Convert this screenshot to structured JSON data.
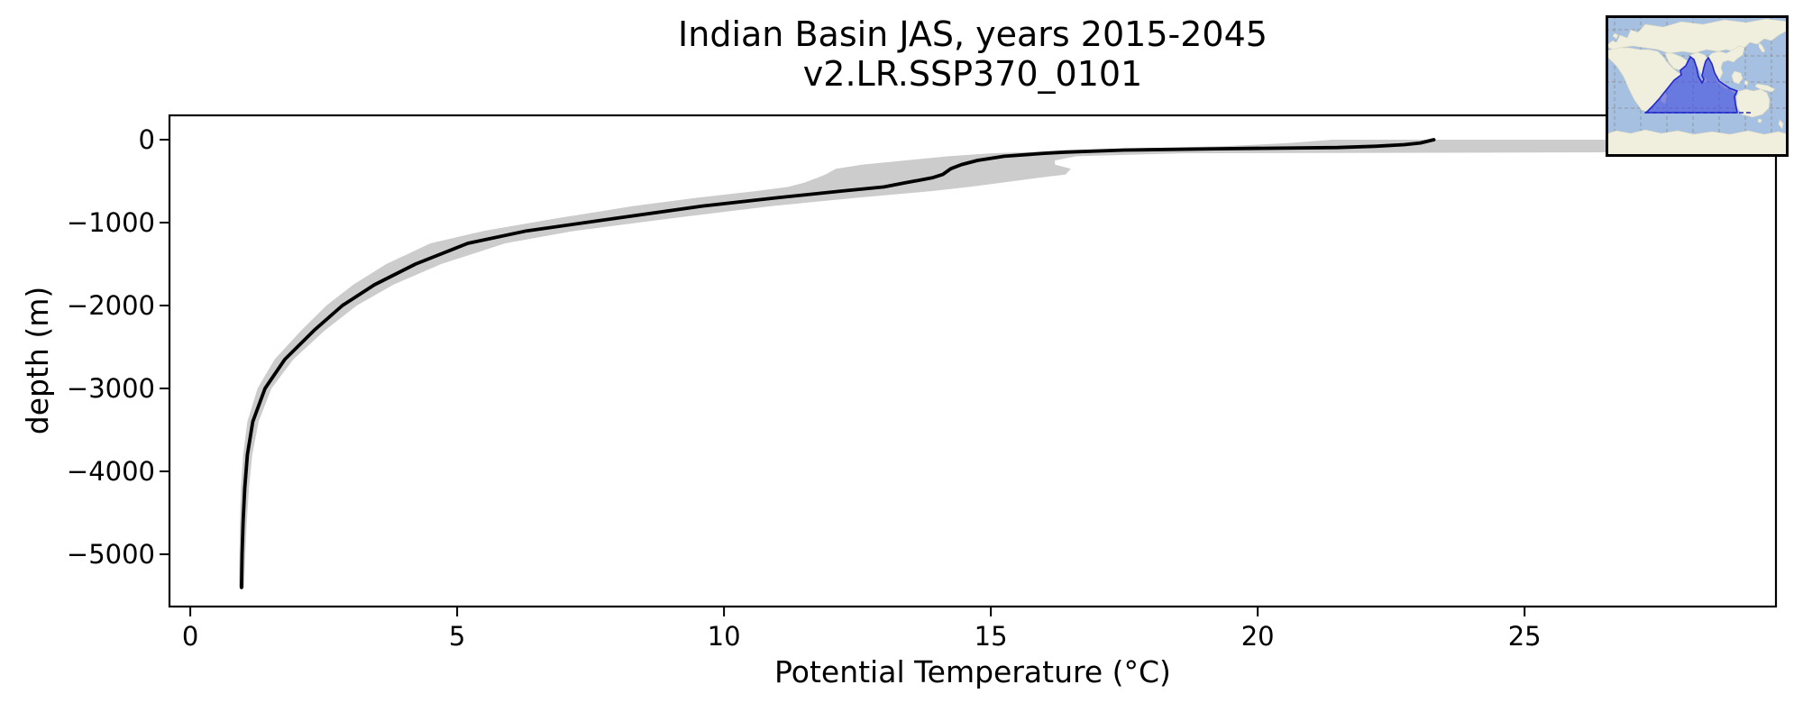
{
  "title": {
    "line1": "Indian Basin JAS, years 2015-2045",
    "line2": "v2.LR.SSP370_0101"
  },
  "axes": {
    "xlabel": "Potential Temperature (°C)",
    "ylabel": "depth (m)",
    "xtick_values": [
      0,
      5,
      10,
      15,
      20,
      25
    ],
    "xtick_labels": [
      "0",
      "5",
      "10",
      "15",
      "20",
      "25"
    ],
    "ytick_values": [
      0,
      -1000,
      -2000,
      -3000,
      -4000,
      -5000
    ],
    "ytick_labels": [
      "0",
      "−1000",
      "−2000",
      "−3000",
      "−4000",
      "−5000"
    ]
  },
  "colors": {
    "mean_line": "#000000",
    "band_fill": "#cccccc",
    "spine": "#000000",
    "map_ocean": "#a5c0e1",
    "map_land": "#f0eedc",
    "map_land_edge": "#d9d6bd",
    "map_grid": "#8f8f8f",
    "map_region_fill": "#4049e0",
    "map_region_stroke": "#2228cc",
    "map_border": "#000000"
  },
  "inset_map": {
    "description": "world map inset with Indian Ocean basin region highlighted"
  },
  "chart_data": {
    "type": "line",
    "title": "Indian Basin JAS, years 2015-2045\nv2.LR.SSP370_0101",
    "xlabel": "Potential Temperature (°C)",
    "ylabel": "depth (m)",
    "xlim": [
      -0.39,
      29.71
    ],
    "ylim": [
      -5630,
      293
    ],
    "grid": false,
    "legend": "none",
    "depths_m": [
      0,
      -40,
      -60,
      -80,
      -95,
      -110,
      -125,
      -150,
      -165,
      -200,
      -250,
      -300,
      -350,
      -420,
      -460,
      -520,
      -570,
      -620,
      -700,
      -800,
      -950,
      -1100,
      -1250,
      -1500,
      -1750,
      -2000,
      -2300,
      -2650,
      -3000,
      -3400,
      -3800,
      -4200,
      -4600,
      -5000,
      -5400
    ],
    "series": [
      {
        "name": "mean-profile",
        "values": [
          23.3,
          23.05,
          22.75,
          22.2,
          21.5,
          19.2,
          17.5,
          16.4,
          16.0,
          15.25,
          14.75,
          14.45,
          14.25,
          14.1,
          13.9,
          13.4,
          13.0,
          12.2,
          11.0,
          9.6,
          7.95,
          6.3,
          5.2,
          4.22,
          3.45,
          2.85,
          2.32,
          1.77,
          1.4,
          1.17,
          1.07,
          1.02,
          0.99,
          0.97,
          0.96
        ]
      },
      {
        "name": "envelope-max",
        "values": [
          28.6,
          28.55,
          28.5,
          28.45,
          28.42,
          28.4,
          28.38,
          28.35,
          18.6,
          16.6,
          16.2,
          16.2,
          16.5,
          16.4,
          15.9,
          15.2,
          14.6,
          13.9,
          12.5,
          10.9,
          9.0,
          7.2,
          5.9,
          4.7,
          3.8,
          3.12,
          2.52,
          1.93,
          1.52,
          1.28,
          1.16,
          1.1,
          1.06,
          1.03,
          1.01
        ]
      },
      {
        "name": "envelope-min",
        "values": [
          21.4,
          20.6,
          20.0,
          19.3,
          18.3,
          17.3,
          16.4,
          15.7,
          15.0,
          14.2,
          13.4,
          12.6,
          12.1,
          11.9,
          11.75,
          11.5,
          11.2,
          10.6,
          9.5,
          8.3,
          6.85,
          5.5,
          4.5,
          3.67,
          3.05,
          2.55,
          2.08,
          1.58,
          1.26,
          1.07,
          0.99,
          0.95,
          0.93,
          0.92,
          0.91
        ]
      }
    ]
  }
}
